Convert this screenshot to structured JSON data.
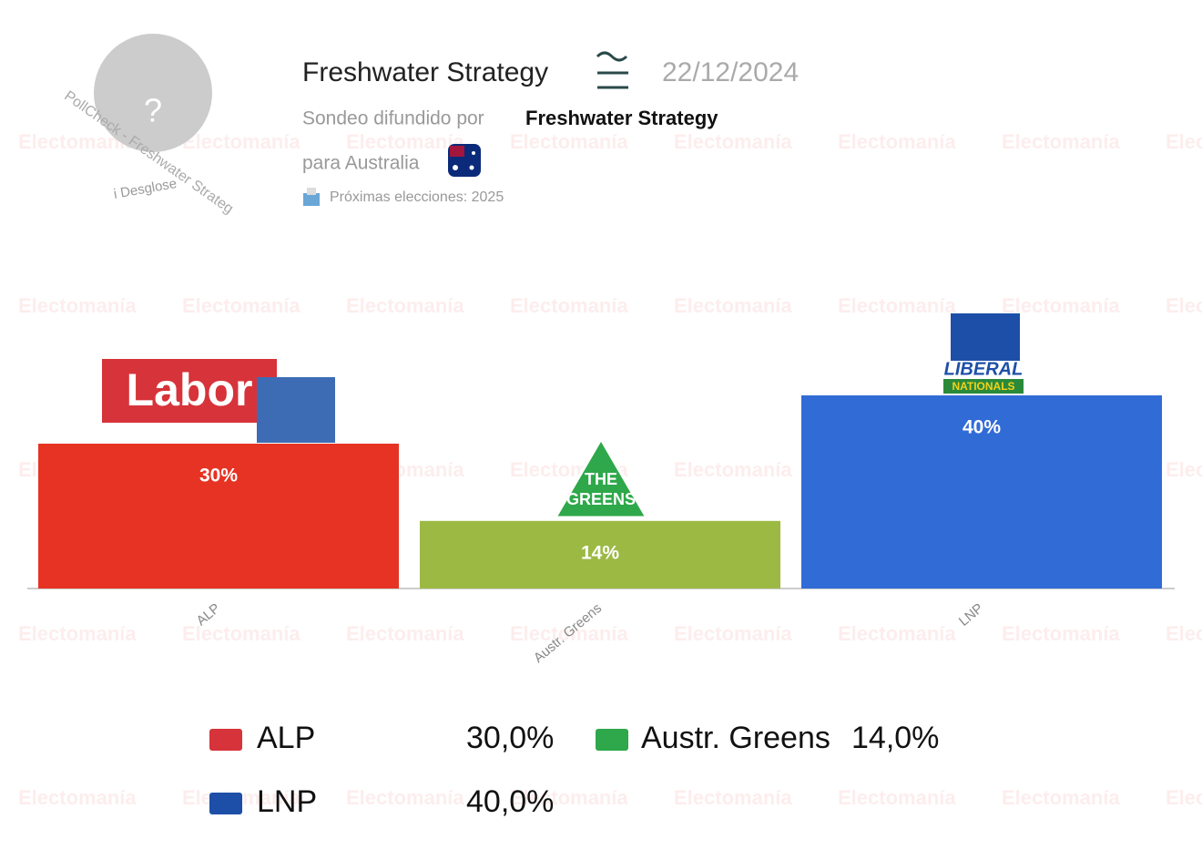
{
  "header": {
    "avatar": "?",
    "pollcheck": "PollCheck - Freshwater Strateg",
    "breakdown": "i Desglose",
    "title": "Freshwater Strategy",
    "date": "22/12/2024",
    "published_by": "Sondeo difundido por",
    "pollster": "Freshwater Strategy",
    "country": "para Australia",
    "next_election": "Próximas elecciones: 2025"
  },
  "watermark": "Electomanía",
  "logos": {
    "alp": "Labor",
    "greens_top": "THE",
    "greens_bottom": "GREENS",
    "lnp_top": "LIBERAL",
    "lnp_bottom": "NATIONALS"
  },
  "chart_data": {
    "type": "bar",
    "categories": [
      "ALP",
      "Austr. Greens",
      "LNP"
    ],
    "values": [
      30,
      14,
      40
    ],
    "value_labels": [
      "30%",
      "14%",
      "40%"
    ],
    "legend_value_labels": [
      "30,0%",
      "14,0%",
      "40,0%"
    ],
    "colors": [
      "#e63323",
      "#9cb944",
      "#316bd6"
    ]
  }
}
